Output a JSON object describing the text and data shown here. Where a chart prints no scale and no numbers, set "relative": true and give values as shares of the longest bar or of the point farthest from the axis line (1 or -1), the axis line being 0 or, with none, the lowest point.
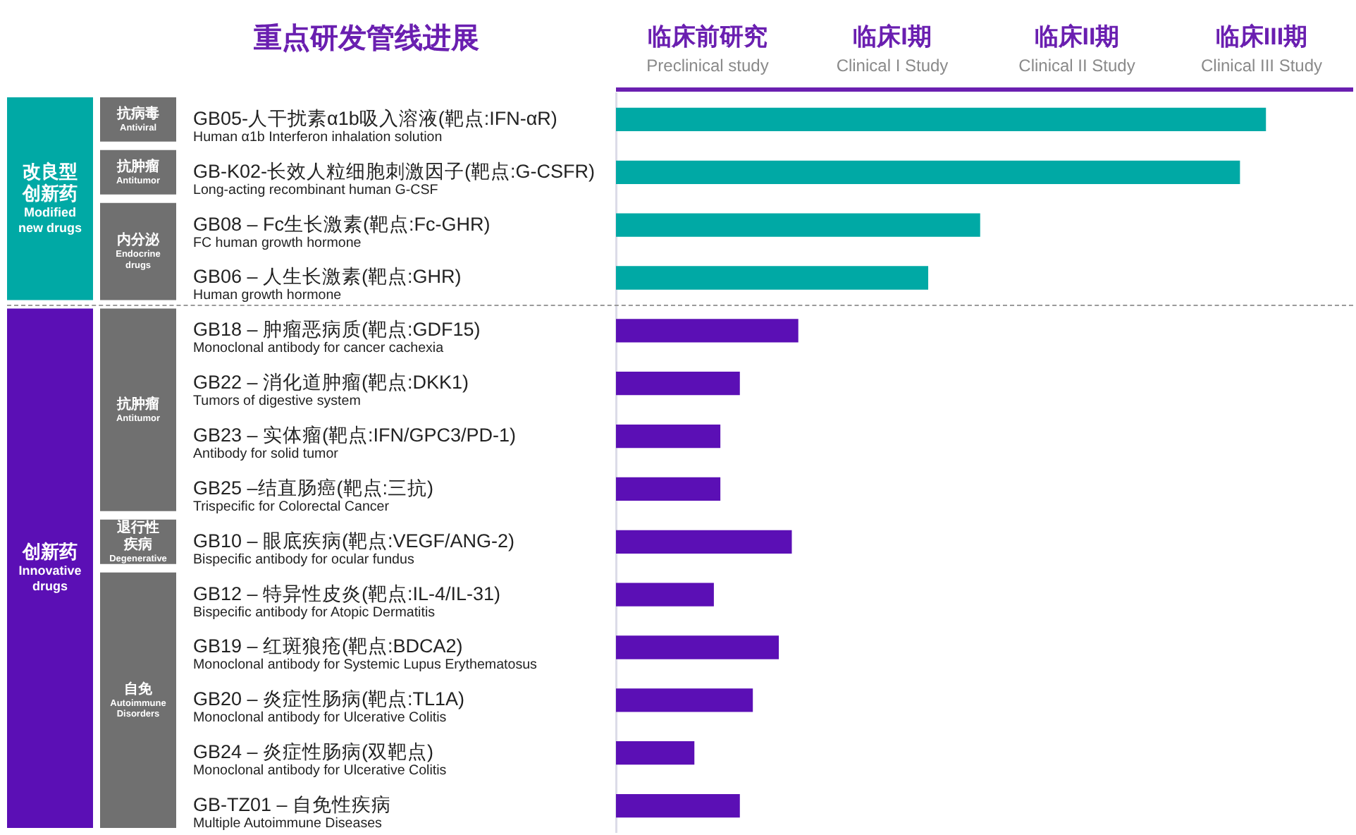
{
  "chart_data": {
    "type": "bar",
    "orientation": "horizontal",
    "relative": true,
    "title": "重点研发管线进展",
    "categories": [
      "GB05-人干扰素α1b吸入溶液(靶点:IFN-αR)\nHuman α1b Interferon inhalation solution",
      "GB-K02-长效人粒细胞刺激因子(靶点:G-CSFR)\nLong-acting recombinant human G-CSF",
      "GB08 – Fc生长激素(靶点:Fc-GHR)\nFC human growth hormone",
      "GB06 – 人生长激素(靶点:GHR)\nHuman growth hormone",
      "GB18 – 肿瘤恶病质(靶点:GDF15)\nMonoclonal antibody for cancer cachexia",
      "GB22 – 消化道肿瘤(靶点:DKK1)\nTumors of digestive system",
      "GB23 – 实体瘤(靶点:IFN/GPC3/PD-1)\nAntibody for solid tumor",
      "GB25 –结直肠癌(靶点:三抗)\nTrispecific for Colorectal Cancer",
      "GB10 – 眼底疾病(靶点:VEGF/ANG-2)\nBispecific antibody for ocular fundus",
      "GB12 – 特异性皮炎(靶点:IL-4/IL-31)\nBispecific antibody for Atopic Dermatitis",
      "GB19 – 红斑狼疮(靶点:BDCA2)\nMonoclonal antibody for Systemic Lupus Erythematosus",
      "GB20 – 炎症性肠病(靶点:TL1A)\nMonoclonal antibody for Ulcerative Colitis",
      "GB24 – 炎症性肠病(双靶点)\nMonoclonal antibody for Ulcerative Colitis",
      "GB-TZ01 – 自免性疾病\nMultiple Autoimmune Diseases"
    ],
    "series": [
      {
        "color": "#00a9a5",
        "values": [
          1,
          0.96,
          0.56,
          0.48,
          null,
          null,
          null,
          null,
          null,
          null,
          null,
          null,
          null,
          null
        ]
      },
      {
        "color": "#5b0fb5",
        "values": [
          null,
          null,
          null,
          null,
          0.28,
          0.19,
          0.16,
          0.16,
          0.27,
          0.15,
          0.25,
          0.21,
          0.12,
          0.19
        ]
      }
    ],
    "annotations": [
      "临床前研究\nPreclinical study",
      "临床I期\nClinical I Study",
      "临床II期\nClinical II Study",
      "临床III期\nClinical III Study",
      "改良型创新药\nModified new drugs",
      "创新药\nInnovative drugs",
      "抗病毒\nAntiviral",
      "抗肿瘤\nAntitumor",
      "内分泌\nEndocrine drugs",
      "抗肿瘤\nAntitumor",
      "退行性疾病\nDegenerative",
      "自免\nAutoimmune Disorders"
    ]
  }
}
